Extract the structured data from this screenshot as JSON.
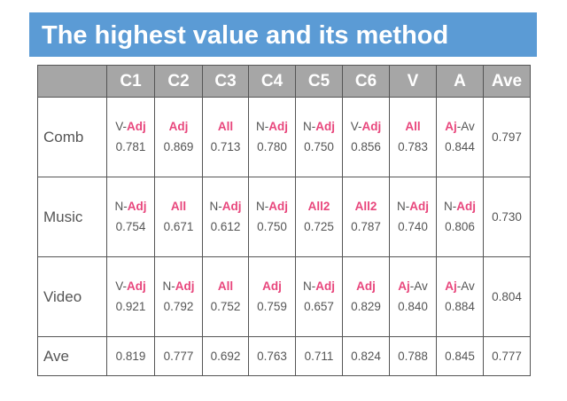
{
  "title": "The highest value and its method",
  "colors": {
    "title_bg": "#5b9bd5",
    "header_bg": "#a6a6a6",
    "highlight": "#e8467c"
  },
  "columns": [
    "C1",
    "C2",
    "C3",
    "C4",
    "C5",
    "C6",
    "V",
    "A",
    "Ave"
  ],
  "rows": [
    {
      "label": "Comb",
      "cells": [
        {
          "pre": "V-",
          "hi": "Adj",
          "post": "",
          "value": "0.781"
        },
        {
          "pre": "",
          "hi": "Adj",
          "post": "",
          "value": "0.869"
        },
        {
          "pre": "",
          "hi": "All",
          "post": "",
          "value": "0.713"
        },
        {
          "pre": "N-",
          "hi": "Adj",
          "post": "",
          "value": "0.780"
        },
        {
          "pre": "N-",
          "hi": "Adj",
          "post": "",
          "value": "0.750"
        },
        {
          "pre": "V-",
          "hi": "Adj",
          "post": "",
          "value": "0.856"
        },
        {
          "pre": "",
          "hi": "All",
          "post": "",
          "value": "0.783"
        },
        {
          "pre": "",
          "hi": "Aj",
          "post": "-Av",
          "value": "0.844"
        }
      ],
      "ave": "0.797"
    },
    {
      "label": "Music",
      "cells": [
        {
          "pre": "N-",
          "hi": "Adj",
          "post": "",
          "value": "0.754"
        },
        {
          "pre": "",
          "hi": "All",
          "post": "",
          "value": "0.671"
        },
        {
          "pre": "N-",
          "hi": "Adj",
          "post": "",
          "value": "0.612"
        },
        {
          "pre": "N-",
          "hi": "Adj",
          "post": "",
          "value": "0.750"
        },
        {
          "pre": "",
          "hi": "All2",
          "post": "",
          "value": "0.725"
        },
        {
          "pre": "",
          "hi": "All2",
          "post": "",
          "value": "0.787"
        },
        {
          "pre": "N-",
          "hi": "Adj",
          "post": "",
          "value": "0.740"
        },
        {
          "pre": "N-",
          "hi": "Adj",
          "post": "",
          "value": "0.806"
        }
      ],
      "ave": "0.730"
    },
    {
      "label": "Video",
      "cells": [
        {
          "pre": "V-",
          "hi": "Adj",
          "post": "",
          "value": "0.921"
        },
        {
          "pre": "N-",
          "hi": "Adj",
          "post": "",
          "value": "0.792"
        },
        {
          "pre": "",
          "hi": "All",
          "post": "",
          "value": "0.752"
        },
        {
          "pre": "",
          "hi": "Adj",
          "post": "",
          "value": "0.759"
        },
        {
          "pre": "N-",
          "hi": "Adj",
          "post": "",
          "value": "0.657"
        },
        {
          "pre": "",
          "hi": "Adj",
          "post": "",
          "value": "0.829"
        },
        {
          "pre": "",
          "hi": "Aj",
          "post": "-Av",
          "value": "0.840"
        },
        {
          "pre": "",
          "hi": "Aj",
          "post": "-Av",
          "value": "0.884"
        }
      ],
      "ave": "0.804"
    }
  ],
  "ave_row": {
    "label": "Ave",
    "values": [
      "0.819",
      "0.777",
      "0.692",
      "0.763",
      "0.711",
      "0.824",
      "0.788",
      "0.845",
      "0.777"
    ]
  }
}
